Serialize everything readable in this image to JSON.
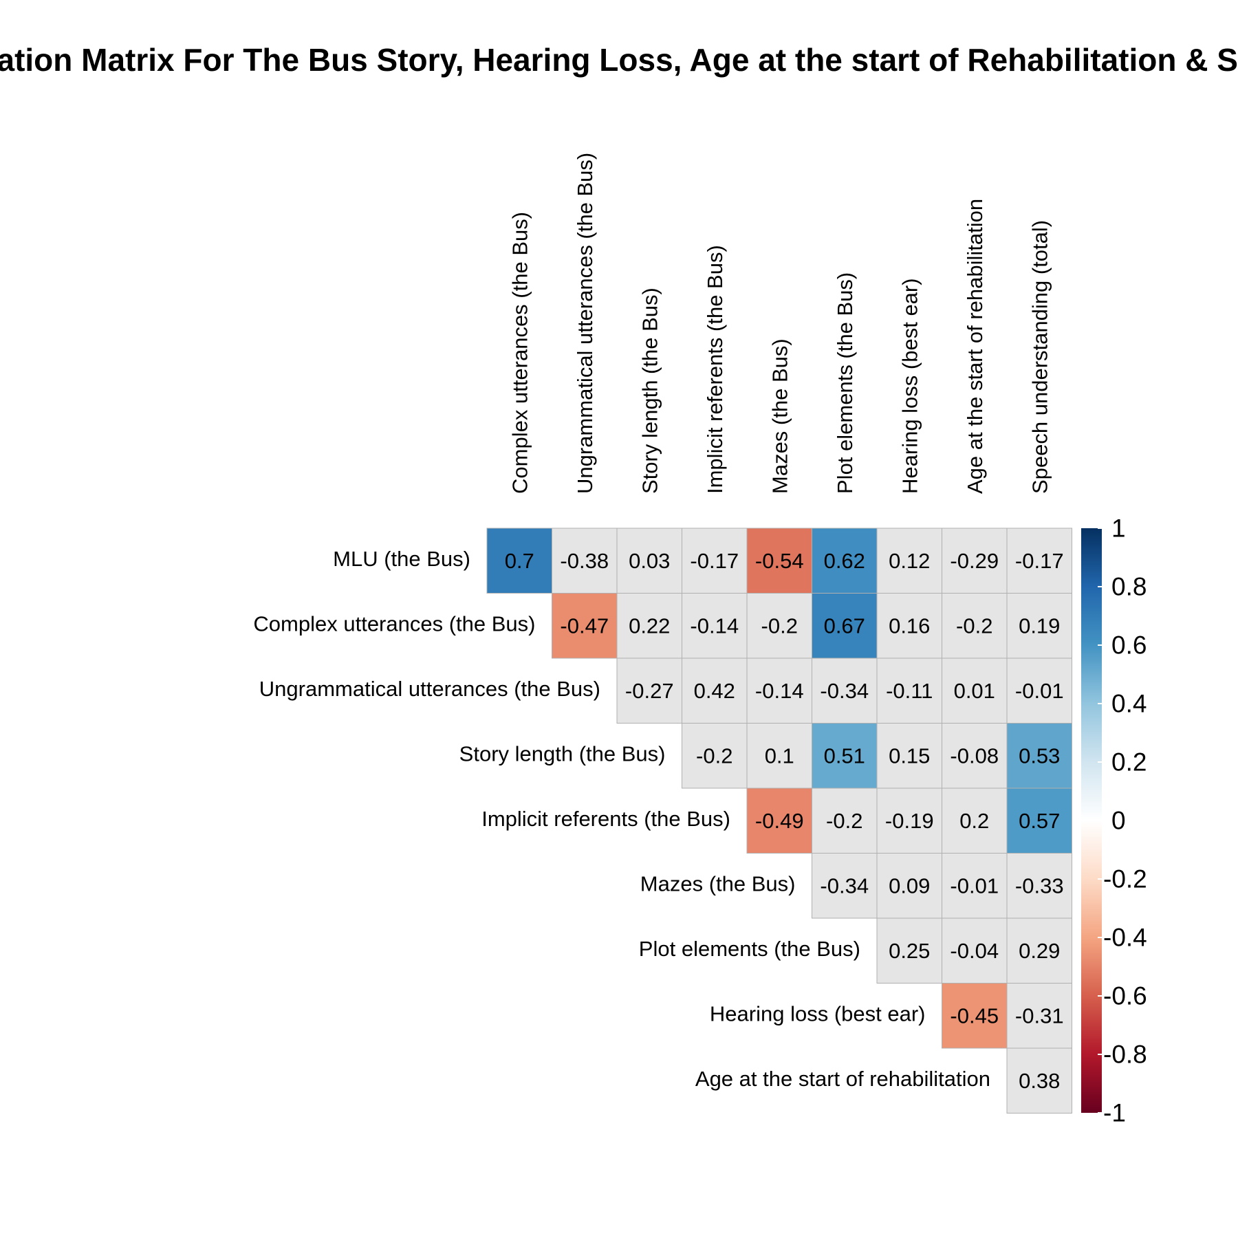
{
  "chart_data": {
    "type": "heatmap",
    "title": "Correlation Matrix For The Bus Story, Hearing Loss, Age at the start of Rehabilitation & Speech Understanding",
    "row_labels": [
      "MLU (the Bus)",
      "Complex utterances (the Bus)",
      "Ungrammatical utterances (the Bus)",
      "Story length (the Bus)",
      "Implicit referents (the Bus)",
      "Mazes (the Bus)",
      "Plot elements (the Bus)",
      "Hearing loss (best ear)",
      "Age at the start of rehabilitation"
    ],
    "col_labels": [
      "Complex utterances (the Bus)",
      "Ungrammatical utterances (the Bus)",
      "Story length (the Bus)",
      "Implicit referents (the Bus)",
      "Mazes (the Bus)",
      "Plot elements (the Bus)",
      "Hearing loss (best ear)",
      "Age at the start of rehabilitation",
      "Speech understanding (total)"
    ],
    "values": [
      [
        "0.7",
        "-0.38",
        "0.03",
        "-0.17",
        "-0.54",
        "0.62",
        "0.12",
        "-0.29",
        "-0.17"
      ],
      [
        null,
        "-0.47",
        "0.22",
        "-0.14",
        "-0.2",
        "0.67",
        "0.16",
        "-0.2",
        "0.19"
      ],
      [
        null,
        null,
        "-0.27",
        "0.42",
        "-0.14",
        "-0.34",
        "-0.11",
        "0.01",
        "-0.01"
      ],
      [
        null,
        null,
        null,
        "-0.2",
        "0.1",
        "0.51",
        "0.15",
        "-0.08",
        "0.53"
      ],
      [
        null,
        null,
        null,
        null,
        "-0.49",
        "-0.2",
        "-0.19",
        "0.2",
        "0.57"
      ],
      [
        null,
        null,
        null,
        null,
        null,
        "-0.34",
        "0.09",
        "-0.01",
        "-0.33"
      ],
      [
        null,
        null,
        null,
        null,
        null,
        null,
        "0.25",
        "-0.04",
        "0.29"
      ],
      [
        null,
        null,
        null,
        null,
        null,
        null,
        null,
        "-0.45",
        "-0.31"
      ],
      [
        null,
        null,
        null,
        null,
        null,
        null,
        null,
        null,
        "0.38"
      ]
    ],
    "highlight_threshold": 0.45,
    "neutral_color": "#e5e5e5",
    "grid_color": "#b0b0b0",
    "colorscale": [
      "#67001f",
      "#b2182b",
      "#d6604d",
      "#f4a582",
      "#fddbc7",
      "#ffffff",
      "#d1e5f0",
      "#92c5de",
      "#4393c3",
      "#2166ac",
      "#053061"
    ],
    "legend": {
      "range": [
        -1,
        1
      ],
      "ticks": [
        "1",
        "0.8",
        "0.6",
        "0.4",
        "0.2",
        "0",
        "-0.2",
        "-0.4",
        "-0.6",
        "-0.8",
        "-1"
      ],
      "position": "right"
    }
  }
}
